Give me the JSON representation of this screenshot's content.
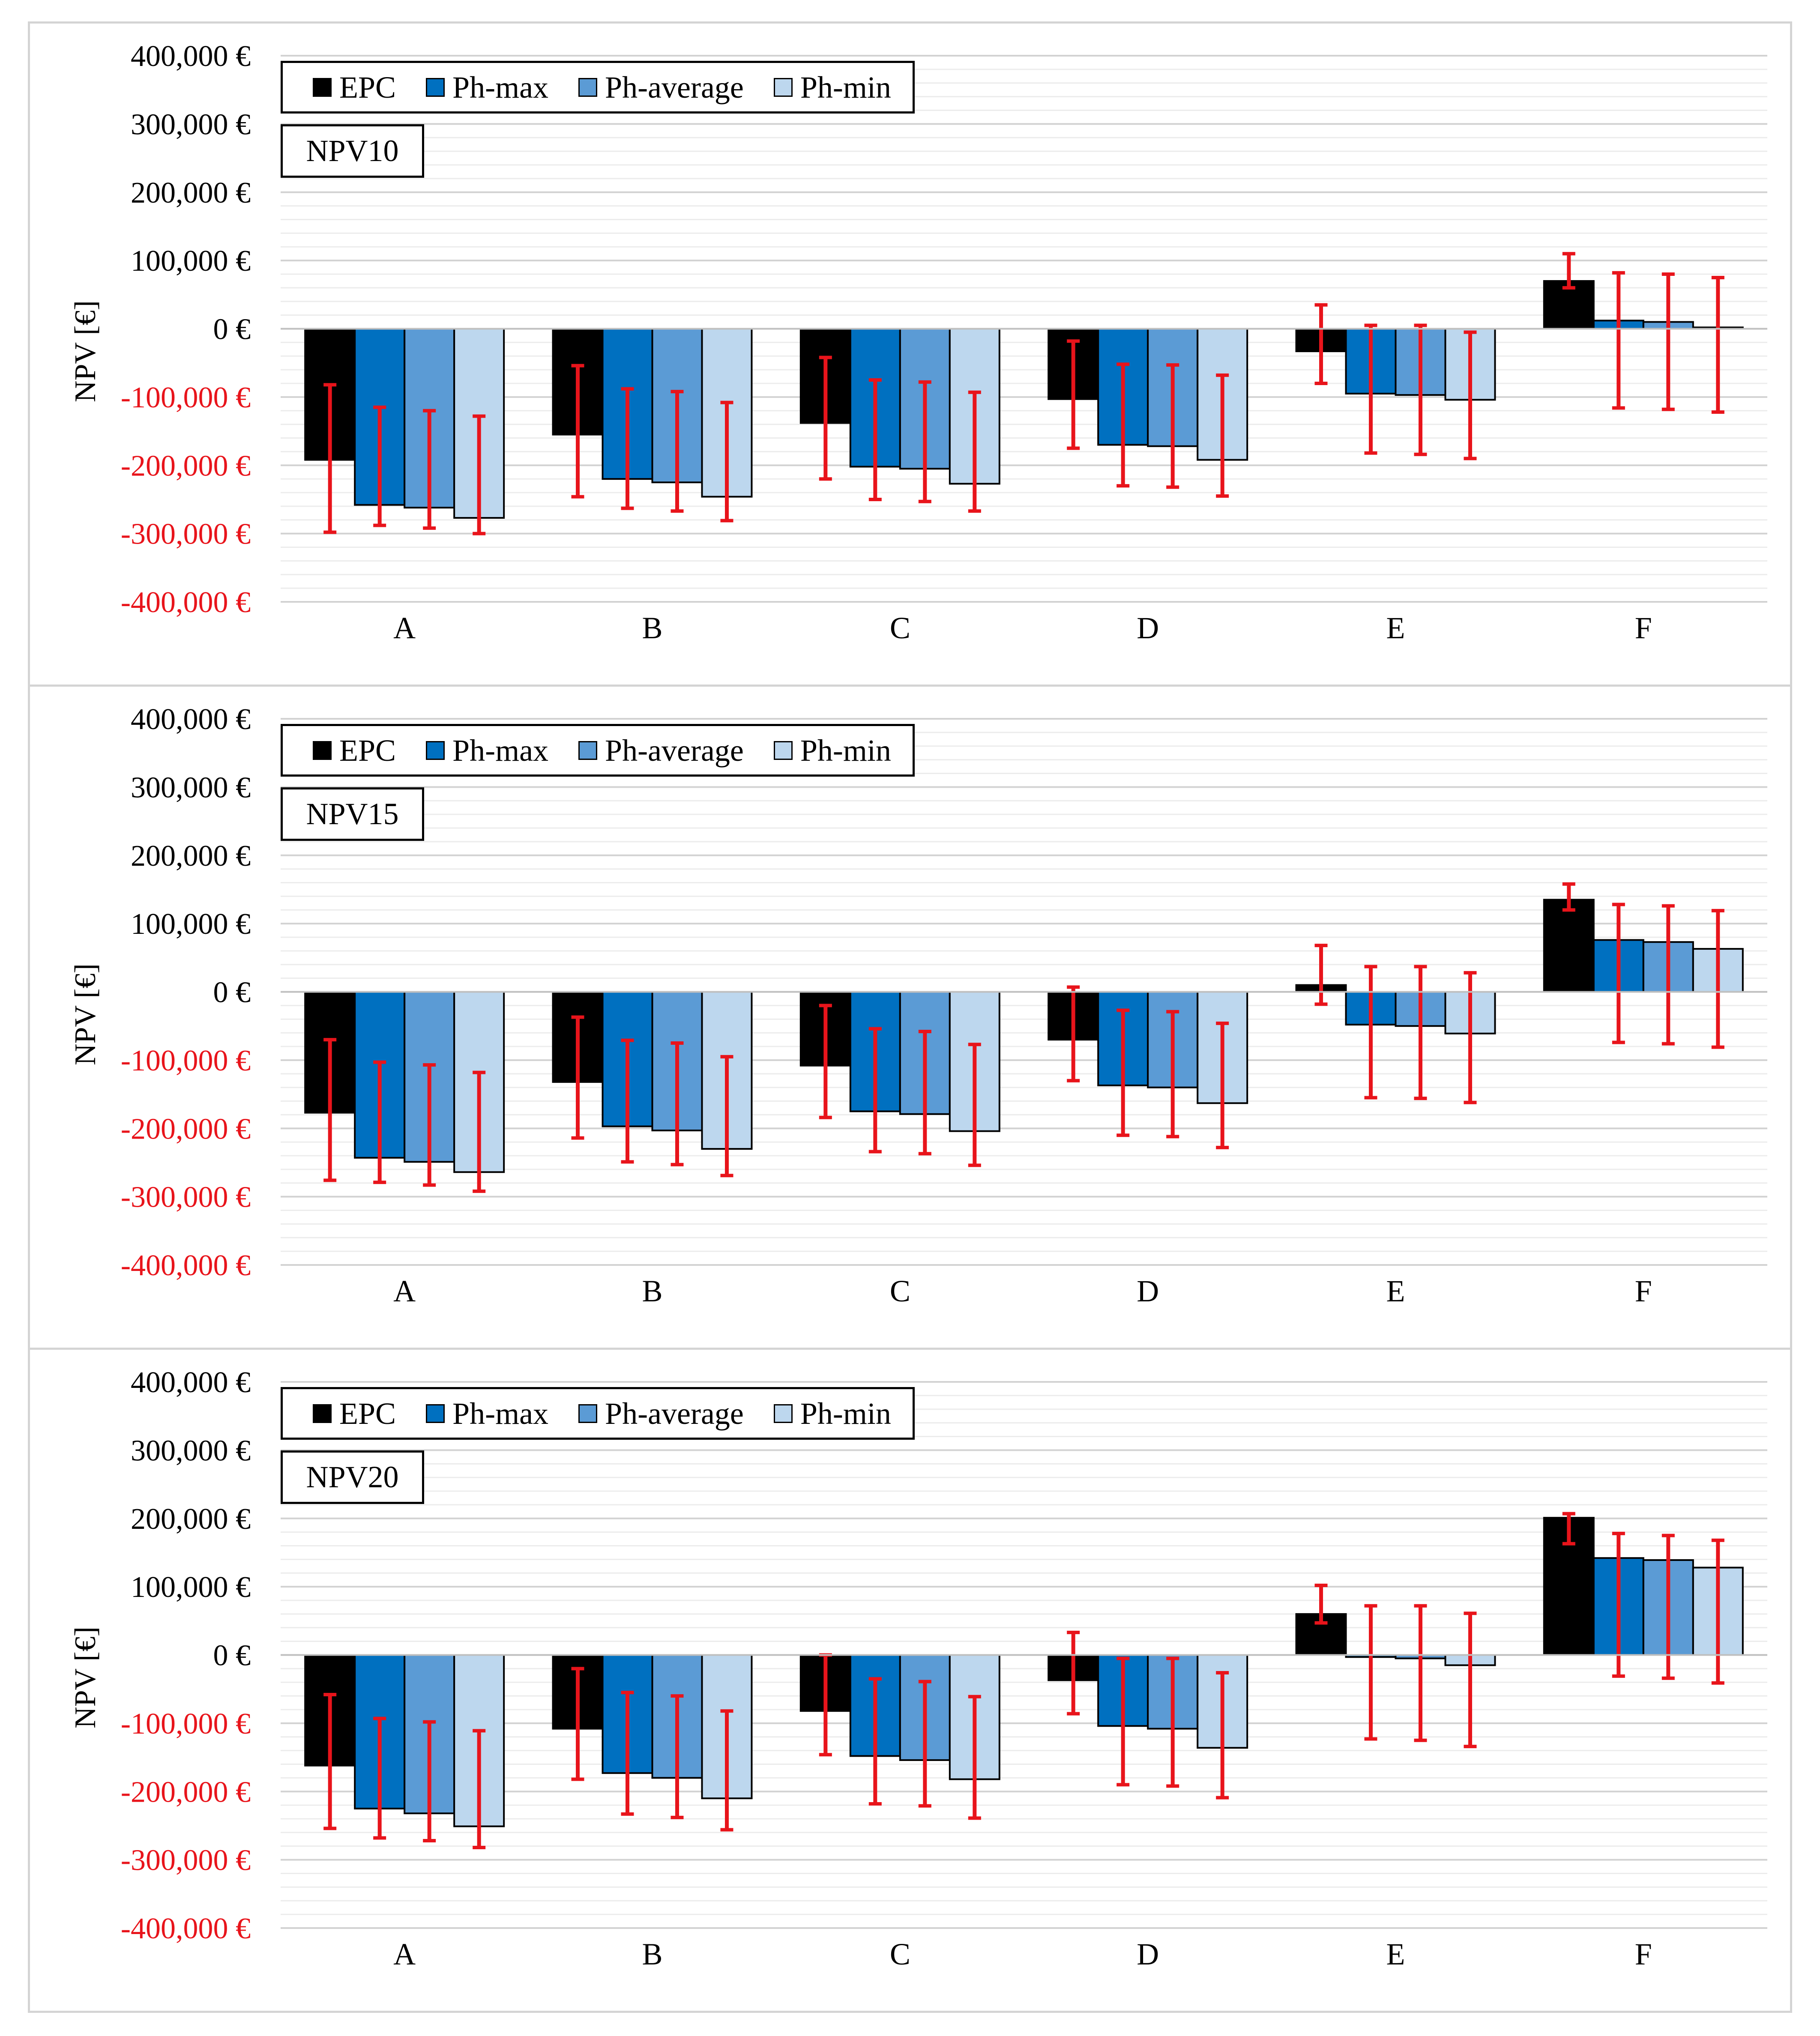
{
  "colors": {
    "EPC": "#000000",
    "Ph-max": "#0070c0",
    "Ph-average": "#5b9bd5",
    "Ph-min": "#bdd7ee",
    "error_bar": "#e8141b",
    "negative_tick": "#e8141b",
    "positive_tick": "#000000",
    "grid": "#dddddd"
  },
  "chart_data": [
    {
      "type": "bar",
      "title": "NPV10",
      "ylabel": "NPV [€]",
      "ylim": [
        -400000,
        400000
      ],
      "yticks": [
        400000,
        300000,
        200000,
        100000,
        0,
        -100000,
        -200000,
        -300000,
        -400000
      ],
      "ytick_labels": [
        "400,000 €",
        "300,000 €",
        "200,000 €",
        "100,000 €",
        "0 €",
        "-100,000 €",
        "-200,000 €",
        "-300,000 €",
        "-400,000 €"
      ],
      "categories": [
        "A",
        "B",
        "C",
        "D",
        "E",
        "F"
      ],
      "legend": [
        "EPC",
        "Ph-max",
        "Ph-average",
        "Ph-min"
      ],
      "series": [
        {
          "name": "EPC",
          "values": [
            -192000,
            -155000,
            -138000,
            -103000,
            -33000,
            70000
          ],
          "err_low": [
            -298000,
            -246000,
            -220000,
            -175000,
            -80000,
            60000
          ],
          "err_high": [
            -82000,
            -54000,
            -42000,
            -18000,
            35000,
            110000
          ]
        },
        {
          "name": "Ph-max",
          "values": [
            -258000,
            -220000,
            -202000,
            -170000,
            -95000,
            12000
          ],
          "err_low": [
            -288000,
            -263000,
            -250000,
            -230000,
            -182000,
            -116000
          ],
          "err_high": [
            -115000,
            -88000,
            -75000,
            -52000,
            5000,
            82000
          ]
        },
        {
          "name": "Ph-average",
          "values": [
            -262000,
            -225000,
            -205000,
            -172000,
            -97000,
            10000
          ],
          "err_low": [
            -292000,
            -267000,
            -253000,
            -232000,
            -184000,
            -118000
          ],
          "err_high": [
            -120000,
            -92000,
            -78000,
            -53000,
            5000,
            80000
          ]
        },
        {
          "name": "Ph-min",
          "values": [
            -277000,
            -246000,
            -227000,
            -192000,
            -104000,
            2000
          ],
          "err_low": [
            -300000,
            -281000,
            -267000,
            -245000,
            -190000,
            -122000
          ],
          "err_high": [
            -128000,
            -108000,
            -93000,
            -68000,
            -5000,
            75000
          ]
        }
      ]
    },
    {
      "type": "bar",
      "title": "NPV15",
      "ylabel": "NPV [€]",
      "ylim": [
        -400000,
        400000
      ],
      "yticks": [
        400000,
        300000,
        200000,
        100000,
        0,
        -100000,
        -200000,
        -300000,
        -400000
      ],
      "ytick_labels": [
        "400,000 €",
        "300,000 €",
        "200,000 €",
        "100,000 €",
        "0 €",
        "-100,000 €",
        "-200,000 €",
        "-300,000 €",
        "-400,000 €"
      ],
      "categories": [
        "A",
        "B",
        "C",
        "D",
        "E",
        "F"
      ],
      "legend": [
        "EPC",
        "Ph-max",
        "Ph-average",
        "Ph-min"
      ],
      "series": [
        {
          "name": "EPC",
          "values": [
            -177000,
            -132000,
            -108000,
            -70000,
            10000,
            135000
          ],
          "err_low": [
            -276000,
            -214000,
            -184000,
            -130000,
            -18000,
            120000
          ],
          "err_high": [
            -70000,
            -37000,
            -20000,
            7000,
            68000,
            158000
          ]
        },
        {
          "name": "Ph-max",
          "values": [
            -243000,
            -197000,
            -175000,
            -137000,
            -48000,
            76000
          ],
          "err_low": [
            -279000,
            -249000,
            -234000,
            -210000,
            -155000,
            -74000
          ],
          "err_high": [
            -103000,
            -71000,
            -54000,
            -27000,
            37000,
            128000
          ]
        },
        {
          "name": "Ph-average",
          "values": [
            -249000,
            -203000,
            -179000,
            -140000,
            -50000,
            73000
          ],
          "err_low": [
            -283000,
            -253000,
            -237000,
            -212000,
            -156000,
            -76000
          ],
          "err_high": [
            -107000,
            -75000,
            -58000,
            -29000,
            37000,
            126000
          ]
        },
        {
          "name": "Ph-min",
          "values": [
            -264000,
            -230000,
            -204000,
            -163000,
            -61000,
            63000
          ],
          "err_low": [
            -292000,
            -269000,
            -254000,
            -228000,
            -162000,
            -81000
          ],
          "err_high": [
            -118000,
            -95000,
            -77000,
            -46000,
            28000,
            119000
          ]
        }
      ]
    },
    {
      "type": "bar",
      "title": "NPV20",
      "ylabel": "NPV [€]",
      "ylim": [
        -400000,
        400000
      ],
      "yticks": [
        400000,
        300000,
        200000,
        100000,
        0,
        -100000,
        -200000,
        -300000,
        -400000
      ],
      "ytick_labels": [
        "400,000 €",
        "300,000 €",
        "200,000 €",
        "100,000 €",
        "0 €",
        "-100,000 €",
        "-200,000 €",
        "-300,000 €",
        "-400,000 €"
      ],
      "categories": [
        "A",
        "B",
        "C",
        "D",
        "E",
        "F"
      ],
      "legend": [
        "EPC",
        "Ph-max",
        "Ph-average",
        "Ph-min"
      ],
      "series": [
        {
          "name": "EPC",
          "values": [
            -162000,
            -108000,
            -82000,
            -37000,
            60000,
            201000
          ],
          "err_low": [
            -254000,
            -182000,
            -146000,
            -86000,
            47000,
            163000
          ],
          "err_high": [
            -58000,
            -20000,
            0,
            33000,
            102000,
            207000
          ]
        },
        {
          "name": "Ph-max",
          "values": [
            -225000,
            -173000,
            -148000,
            -104000,
            -3000,
            142000
          ],
          "err_low": [
            -268000,
            -233000,
            -218000,
            -190000,
            -123000,
            -31000
          ],
          "err_high": [
            -93000,
            -55000,
            -35000,
            -5000,
            72000,
            178000
          ]
        },
        {
          "name": "Ph-average",
          "values": [
            -232000,
            -180000,
            -154000,
            -108000,
            -5000,
            139000
          ],
          "err_low": [
            -272000,
            -238000,
            -221000,
            -192000,
            -125000,
            -34000
          ],
          "err_high": [
            -98000,
            -60000,
            -39000,
            -5000,
            72000,
            175000
          ]
        },
        {
          "name": "Ph-min",
          "values": [
            -251000,
            -210000,
            -182000,
            -136000,
            -15000,
            128000
          ],
          "err_low": [
            -282000,
            -256000,
            -239000,
            -209000,
            -134000,
            -41000
          ],
          "err_high": [
            -111000,
            -82000,
            -61000,
            -26000,
            61000,
            168000
          ]
        }
      ]
    }
  ]
}
